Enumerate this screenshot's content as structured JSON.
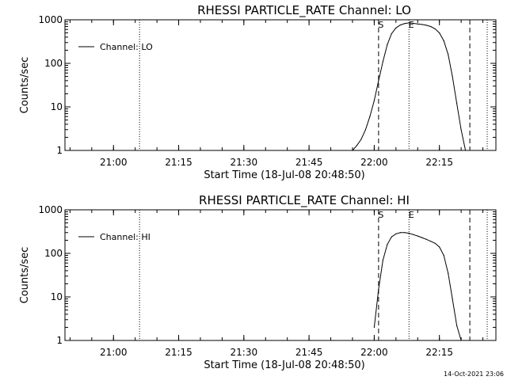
{
  "timestamp": "14-Oct-2021 23:06",
  "chart_data": [
    {
      "type": "line",
      "title": "RHESSI PARTICLE_RATE Channel: LO",
      "xlabel": "Start Time (18-Jul-08 20:48:50)",
      "ylabel": "Counts/sec",
      "yscale": "log",
      "ylim": [
        1,
        1000
      ],
      "xlim": [
        "20:48:50",
        "22:28:00"
      ],
      "x_ticks": [
        "21:00",
        "21:15",
        "21:30",
        "21:45",
        "22:00",
        "22:15"
      ],
      "y_ticks": [
        "1",
        "10",
        "100",
        "1000"
      ],
      "legend": "Channel: LO",
      "legend_position": "upper-left",
      "markers": [
        {
          "label": "S",
          "time": "22:01",
          "style": "dashed"
        },
        {
          "label": "E",
          "time": "22:08",
          "style": "dotted"
        }
      ],
      "dashed_lines": [
        "22:01",
        "22:22"
      ],
      "dotted_lines": [
        "21:06",
        "22:08",
        "22:26"
      ],
      "series": [
        {
          "x": [
            "21:55",
            "21:56",
            "21:57",
            "21:58",
            "21:59",
            "22:00",
            "22:01",
            "22:02",
            "22:03",
            "22:04",
            "22:05",
            "22:06",
            "22:07",
            "22:08",
            "22:09",
            "22:10",
            "22:11",
            "22:12",
            "22:13",
            "22:14",
            "22:15",
            "22:16",
            "22:17",
            "22:18",
            "22:19",
            "22:20",
            "22:21"
          ],
          "y": [
            1,
            1.3,
            1.8,
            3,
            6,
            14,
            40,
            110,
            270,
            480,
            650,
            760,
            820,
            850,
            830,
            800,
            780,
            750,
            700,
            620,
            500,
            330,
            160,
            50,
            12,
            3,
            1
          ]
        }
      ]
    },
    {
      "type": "line",
      "title": "RHESSI PARTICLE_RATE Channel: HI",
      "xlabel": "Start Time (18-Jul-08 20:48:50)",
      "ylabel": "Counts/sec",
      "yscale": "log",
      "ylim": [
        1,
        1000
      ],
      "xlim": [
        "20:48:50",
        "22:28:00"
      ],
      "x_ticks": [
        "21:00",
        "21:15",
        "21:30",
        "21:45",
        "22:00",
        "22:15"
      ],
      "y_ticks": [
        "1",
        "10",
        "100",
        "1000"
      ],
      "legend": "Channel: HI",
      "legend_position": "upper-left",
      "markers": [
        {
          "label": "S",
          "time": "22:01",
          "style": "dashed"
        },
        {
          "label": "E",
          "time": "22:08",
          "style": "dotted"
        }
      ],
      "dashed_lines": [
        "22:01",
        "22:22"
      ],
      "dotted_lines": [
        "21:06",
        "22:08",
        "22:26"
      ],
      "series": [
        {
          "x": [
            "22:00",
            "22:01",
            "22:02",
            "22:03",
            "22:04",
            "22:05",
            "22:06",
            "22:07",
            "22:08",
            "22:09",
            "22:10",
            "22:11",
            "22:12",
            "22:13",
            "22:14",
            "22:15",
            "22:16",
            "22:17",
            "22:18",
            "22:19",
            "22:20"
          ],
          "y": [
            2,
            15,
            70,
            160,
            240,
            280,
            300,
            300,
            290,
            270,
            250,
            230,
            210,
            190,
            170,
            140,
            90,
            35,
            9,
            2.2,
            1
          ]
        }
      ]
    }
  ]
}
